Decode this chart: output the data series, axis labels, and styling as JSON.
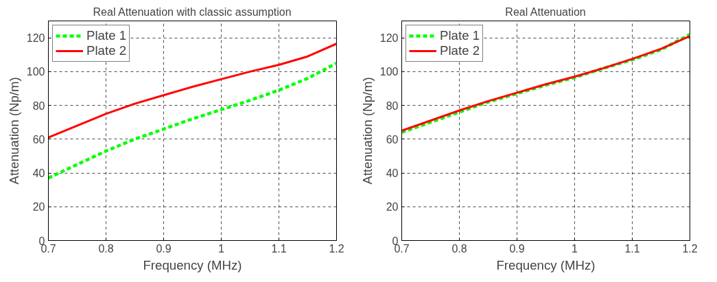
{
  "chart_data": [
    {
      "type": "line",
      "title": "Real Attenuation with classic assumption",
      "xlabel": "Frequency (MHz)",
      "ylabel": "Attenuation (Np/m)",
      "x": [
        0.7,
        0.75,
        0.8,
        0.85,
        0.9,
        0.95,
        1.0,
        1.05,
        1.1,
        1.15,
        1.2
      ],
      "xlim": [
        0.7,
        1.2
      ],
      "ylim": [
        0,
        130
      ],
      "xticks": [
        0.7,
        0.8,
        0.9,
        1,
        1.1,
        1.2
      ],
      "yticks": [
        0,
        20,
        40,
        60,
        80,
        100,
        120
      ],
      "grid": true,
      "legend": "top left",
      "series": [
        {
          "name": "Plate 1",
          "color": "#00ff00",
          "line_style": "dashed",
          "values": [
            37,
            45,
            53,
            60,
            66,
            72,
            77.5,
            83,
            89,
            96,
            105
          ]
        },
        {
          "name": "Plate 2",
          "color": "#ff0000",
          "line_style": "solid",
          "values": [
            61,
            68,
            75,
            81,
            86,
            91,
            95.5,
            100,
            104,
            109,
            116.5
          ]
        }
      ]
    },
    {
      "type": "line",
      "title": "Real Attenuation",
      "xlabel": "Frequency (MHz)",
      "ylabel": "Attenuation (Np/m)",
      "x": [
        0.7,
        0.75,
        0.8,
        0.85,
        0.9,
        0.95,
        1.0,
        1.05,
        1.1,
        1.15,
        1.2
      ],
      "xlim": [
        0.7,
        1.2
      ],
      "ylim": [
        0,
        130
      ],
      "xticks": [
        0.7,
        0.8,
        0.9,
        1,
        1.1,
        1.2
      ],
      "yticks": [
        0,
        20,
        40,
        60,
        80,
        100,
        120
      ],
      "grid": true,
      "legend": "top left",
      "series": [
        {
          "name": "Plate 1",
          "color": "#00ff00",
          "line_style": "dashed",
          "values": [
            64,
            70,
            76,
            82,
            87,
            92,
            96.5,
            102,
            107,
            113,
            122
          ]
        },
        {
          "name": "Plate 2",
          "color": "#ff0000",
          "line_style": "solid",
          "values": [
            65,
            71,
            77,
            82.5,
            87.5,
            92.5,
            97,
            102,
            107.5,
            113.5,
            121
          ]
        }
      ]
    }
  ]
}
